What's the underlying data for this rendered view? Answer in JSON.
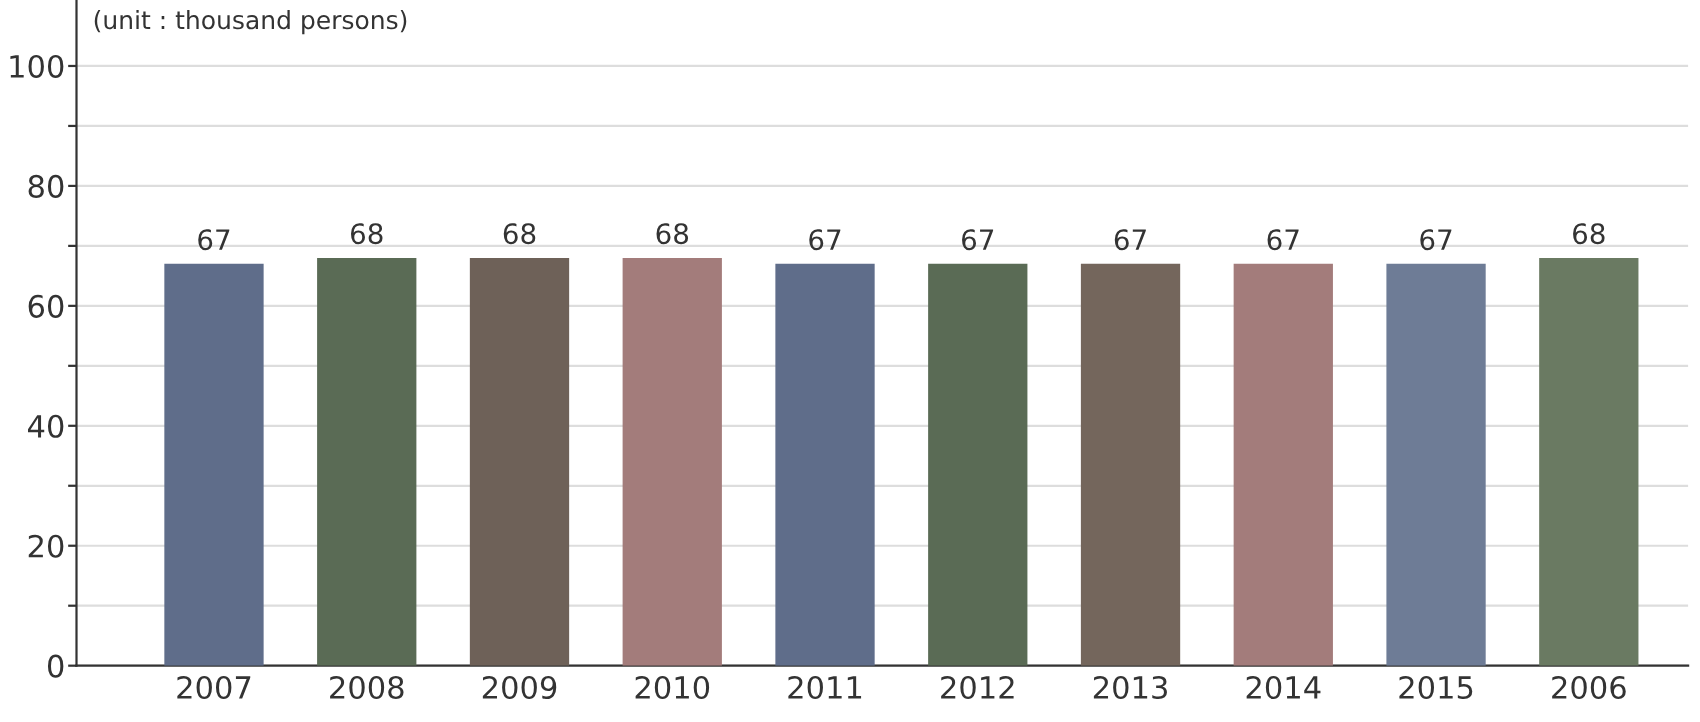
{
  "chart_data": {
    "type": "bar",
    "annotations": [
      "(unit : thousand persons)"
    ],
    "categories": [
      "2007",
      "2008",
      "2009",
      "2010",
      "2011",
      "2012",
      "2013",
      "2014",
      "2015",
      "2006"
    ],
    "values": [
      67,
      68,
      68,
      68,
      67,
      67,
      67,
      67,
      67,
      68
    ],
    "colors": [
      "#5f6d8a",
      "#5a6b55",
      "#6e6158",
      "#a37c7b",
      "#5f6d8a",
      "#5a6b55",
      "#74665c",
      "#a37c7b",
      "#6e7c96",
      "#6a7a62"
    ],
    "data_labels": true,
    "ylim": [
      0,
      111
    ],
    "yticks": [
      0,
      {
        "value": 10,
        "label": null
      },
      20,
      {
        "value": 30,
        "label": null
      },
      40,
      {
        "value": 50,
        "label": null
      },
      60,
      {
        "value": 70,
        "label": null
      },
      80,
      {
        "value": 90,
        "label": null
      },
      100
    ],
    "grid": "y"
  }
}
